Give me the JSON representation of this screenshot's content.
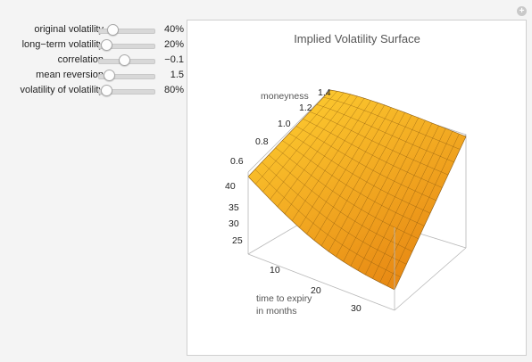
{
  "controls": [
    {
      "label": "original volatility",
      "value": "40%",
      "fraction": 0.2
    },
    {
      "label": "long−term volatility",
      "value": "20%",
      "fraction": 0.05
    },
    {
      "label": "correlation",
      "value": "−0.1",
      "fraction": 0.45
    },
    {
      "label": "mean reversion",
      "value": "1.5",
      "fraction": 0.12
    },
    {
      "label": "volatility of volatility",
      "value": "80%",
      "fraction": 0.05
    }
  ],
  "plot": {
    "title": "Implied Volatility Surface",
    "moneyness_label": "moneyness",
    "time_label_1": "time to expiry",
    "time_label_2": "in months",
    "moneyness_ticks": [
      "0.6",
      "0.8",
      "1.0",
      "1.2",
      "1.4"
    ],
    "time_ticks": [
      "10",
      "20",
      "30"
    ],
    "vol_ticks": [
      "40",
      "35",
      "30",
      "25"
    ]
  },
  "colors": {
    "surface_light": "#ffd233",
    "surface_dark": "#e88a14",
    "box_line": "#b0b0b0"
  }
}
